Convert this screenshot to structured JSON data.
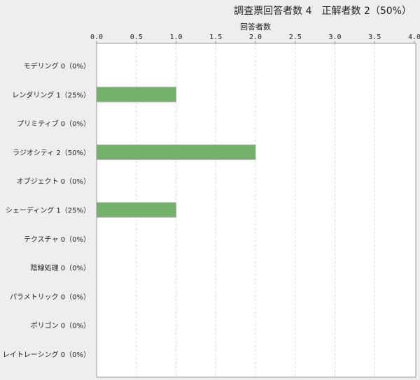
{
  "chart_data": {
    "type": "bar",
    "orientation": "horizontal",
    "title": "調査票回答者数 4　正解者数 2（50%）",
    "xlabel": "回答者数",
    "xlim": [
      0,
      4.0
    ],
    "xticks": [
      "0.0",
      "0.5",
      "1.0",
      "1.5",
      "2.0",
      "2.5",
      "3.0",
      "3.5",
      "4.0"
    ],
    "grid": true,
    "bar_color": "#73b06a",
    "categories": [
      "モデリング 0（0%）",
      "レンダリング 1（25%）",
      "プリミティブ 0（0%）",
      "ラジオシティ 2（50%）",
      "オブジェクト 0（0%）",
      "シェーディング 1（25%）",
      "テクスチャ 0（0%）",
      "陰線処理 0（0%）",
      "パラメトリック 0（0%）",
      "ポリゴン 0（0%）",
      "レイトレーシング 0（0%）"
    ],
    "values": [
      0,
      1,
      0,
      2,
      0,
      1,
      0,
      0,
      0,
      0,
      0
    ]
  }
}
